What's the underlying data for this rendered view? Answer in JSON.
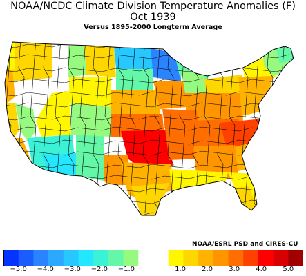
{
  "titles": {
    "line1": "NOAA/NCDC Climate Division Temperature Anomalies (F)",
    "line2": "Oct 1939",
    "line3": "Versus 1895-2000 Longterm Average"
  },
  "credit": "NOAA/ESRL PSD and CIRES-CU",
  "colorbar": {
    "colors": [
      "#0533ff",
      "#1b5cff",
      "#2b84ff",
      "#2ba8ff",
      "#27c8ff",
      "#23e6ff",
      "#3cf2d6",
      "#64f7a8",
      "#96fa80",
      "#ffffff",
      "#ffffff",
      "#fff600",
      "#ffd700",
      "#ffb300",
      "#ff9500",
      "#ff6e00",
      "#ff4100",
      "#ff0000",
      "#d80000",
      "#a00000"
    ],
    "ticks": [
      "-5.0",
      "-4.0",
      "-3.0",
      "-2.0",
      "-1.0",
      "0.0",
      "1.0",
      "2.0",
      "3.0",
      "4.0",
      "5.0"
    ],
    "visible_ticks": [
      "−5.0",
      "−4.0",
      "−3.0",
      "−2.0",
      "−1.0",
      "1.0",
      "2.0",
      "3.0",
      "4.0",
      "5.0"
    ]
  },
  "regions": [
    {
      "name": "pacific-northwest",
      "color": "#ffd700"
    },
    {
      "name": "wa-coast",
      "color": "#fff600"
    },
    {
      "name": "or-coast",
      "color": "#ffb300"
    },
    {
      "name": "n-california-coast",
      "color": "#ffd700"
    },
    {
      "name": "s-california-coast",
      "color": "#ffb300"
    },
    {
      "name": "great-basin",
      "color": "#ffffff"
    },
    {
      "name": "nevada-interior",
      "color": "#96fa80"
    },
    {
      "name": "southwest-desert",
      "color": "#3cf2d6"
    },
    {
      "name": "se-arizona",
      "color": "#23e6ff"
    },
    {
      "name": "new-mexico-west",
      "color": "#64f7a8"
    },
    {
      "name": "idaho",
      "color": "#ffffff"
    },
    {
      "name": "montana-west",
      "color": "#96fa80"
    },
    {
      "name": "montana-east",
      "color": "#ffd700"
    },
    {
      "name": "wyoming",
      "color": "#fff600"
    },
    {
      "name": "utah",
      "color": "#fff600"
    },
    {
      "name": "colorado",
      "color": "#96fa80"
    },
    {
      "name": "north-dakota",
      "color": "#27c8ff"
    },
    {
      "name": "minnesota-north",
      "color": "#2b84ff"
    },
    {
      "name": "south-dakota",
      "color": "#64f7a8"
    },
    {
      "name": "upper-michigan",
      "color": "#64f7a8"
    },
    {
      "name": "nebraska",
      "color": "#ffb300"
    },
    {
      "name": "kansas",
      "color": "#ff6e00"
    },
    {
      "name": "oklahoma-north",
      "color": "#ff0000"
    },
    {
      "name": "iowa",
      "color": "#ff9500"
    },
    {
      "name": "wisconsin",
      "color": "#96fa80"
    },
    {
      "name": "great-lakes",
      "color": "#ffd700"
    },
    {
      "name": "new-york",
      "color": "#fff600"
    },
    {
      "name": "new-england",
      "color": "#96fa80"
    },
    {
      "name": "maine",
      "color": "#64f7a8"
    },
    {
      "name": "ohio-valley",
      "color": "#ff9500"
    },
    {
      "name": "mid-atlantic",
      "color": "#ffb300"
    },
    {
      "name": "missouri-arkansas",
      "color": "#ff6e00"
    },
    {
      "name": "tennessee",
      "color": "#ff6e00"
    },
    {
      "name": "carolinas",
      "color": "#ff4100"
    },
    {
      "name": "se-coast",
      "color": "#ffb300"
    },
    {
      "name": "georgia-alabama",
      "color": "#ff9500"
    },
    {
      "name": "texas-west",
      "color": "#ff9500"
    },
    {
      "name": "texas-central",
      "color": "#ffb300"
    },
    {
      "name": "texas-south",
      "color": "#ffd700"
    },
    {
      "name": "gulf-coast",
      "color": "#fff600"
    },
    {
      "name": "florida",
      "color": "#fff600"
    },
    {
      "name": "florida-south",
      "color": "#ffd700"
    }
  ]
}
